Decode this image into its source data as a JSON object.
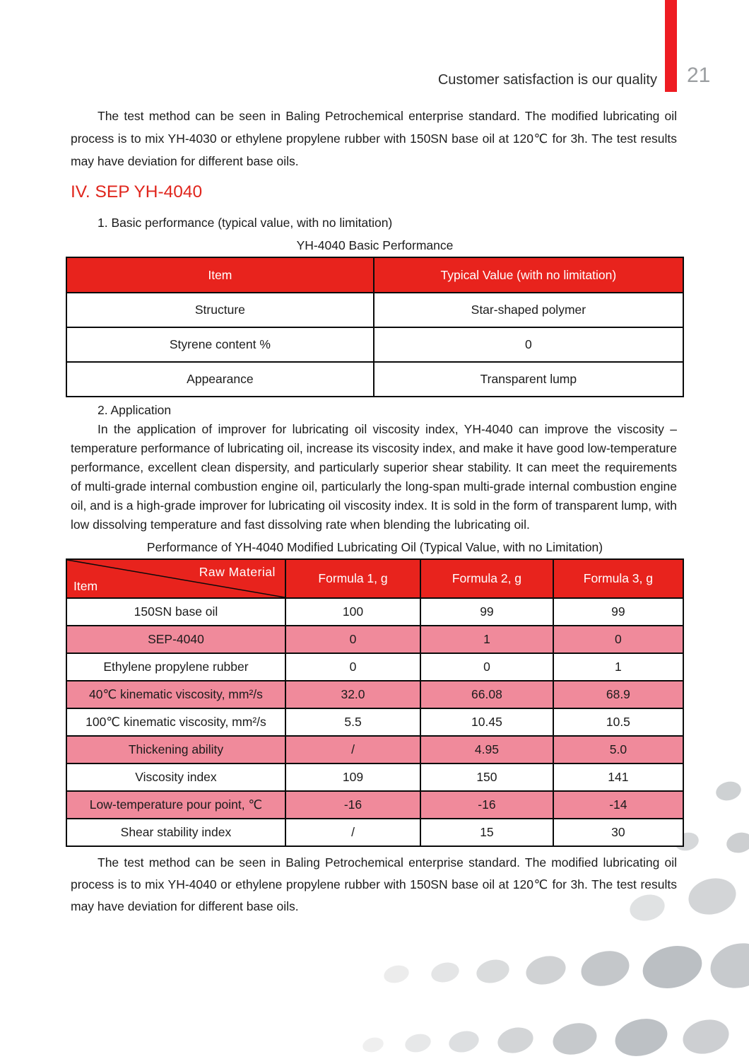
{
  "header": {
    "motto": "Customer satisfaction is our quality",
    "page_number": "21"
  },
  "section": {
    "intro_paragraph": "The test method can be seen in Baling Petrochemical enterprise standard. The modified lubricating oil process is to mix YH-4030 or ethylene propylene rubber with 150SN base oil at 120℃ for 3h. The test results may have deviation for different base oils.",
    "heading": "IV. SEP YH-4040",
    "item1_label": "1. Basic performance (typical value, with no limitation)",
    "item2_label": "2. Application",
    "application_paragraph": "In the application of improver for lubricating oil viscosity index, YH-4040 can improve the viscosity – temperature performance of lubricating oil, increase its viscosity index, and make it have good low-temperature performance, excellent clean dispersity, and particularly superior shear stability. It can meet the requirements of multi-grade internal combustion engine oil, particularly the long-span multi-grade internal combustion engine oil, and is a high-grade improver for lubricating oil viscosity index. It is sold in the form of transparent lump, with low dissolving temperature and fast dissolving rate when blending the lubricating oil.",
    "closing_paragraph": "The test method can be seen in Baling Petrochemical enterprise standard. The modified lubricating oil process is to mix YH-4040 or ethylene propylene rubber with 150SN base oil at 120℃ for 3h. The test results may have deviation for different base oils."
  },
  "basic_table": {
    "caption": "YH-4040 Basic Performance",
    "headers": [
      "Item",
      "Typical Value (with no limitation)"
    ],
    "rows": [
      [
        "Structure",
        "Star-shaped polymer"
      ],
      [
        "Styrene content %",
        "0"
      ],
      [
        "Appearance",
        "Transparent lump"
      ]
    ]
  },
  "performance_table": {
    "caption": "Performance of YH-4040 Modified Lubricating Oil (Typical Value, with no Limitation)",
    "corner": {
      "top": "Raw Material",
      "bottom": "Item"
    },
    "headers": [
      "Formula 1, g",
      "Formula 2, g",
      "Formula 3, g"
    ],
    "rows": [
      {
        "item": "150SN base oil",
        "values": [
          "100",
          "99",
          "99"
        ],
        "highlight": false
      },
      {
        "item": "SEP-4040",
        "values": [
          "0",
          "1",
          "0"
        ],
        "highlight": true
      },
      {
        "item": "Ethylene propylene rubber",
        "values": [
          "0",
          "0",
          "1"
        ],
        "highlight": false
      },
      {
        "item": "40℃ kinematic viscosity, mm²/s",
        "values": [
          "32.0",
          "66.08",
          "68.9"
        ],
        "highlight": true
      },
      {
        "item": "100℃ kinematic viscosity, mm²/s",
        "values": [
          "5.5",
          "10.45",
          "10.5"
        ],
        "highlight": false
      },
      {
        "item": "Thickening ability",
        "values": [
          "/",
          "4.95",
          "5.0"
        ],
        "highlight": true
      },
      {
        "item": "Viscosity index",
        "values": [
          "109",
          "150",
          "141"
        ],
        "highlight": false
      },
      {
        "item": "Low-temperature pour point, ℃",
        "values": [
          "-16",
          "-16",
          "-14"
        ],
        "highlight": true
      },
      {
        "item": "Shear stability index",
        "values": [
          "/",
          "15",
          "30"
        ],
        "highlight": false
      }
    ]
  },
  "colors": {
    "accent_red": "#e8231d",
    "row_pink": "#f08a9b",
    "page_number_gray": "#9b9ea1"
  }
}
